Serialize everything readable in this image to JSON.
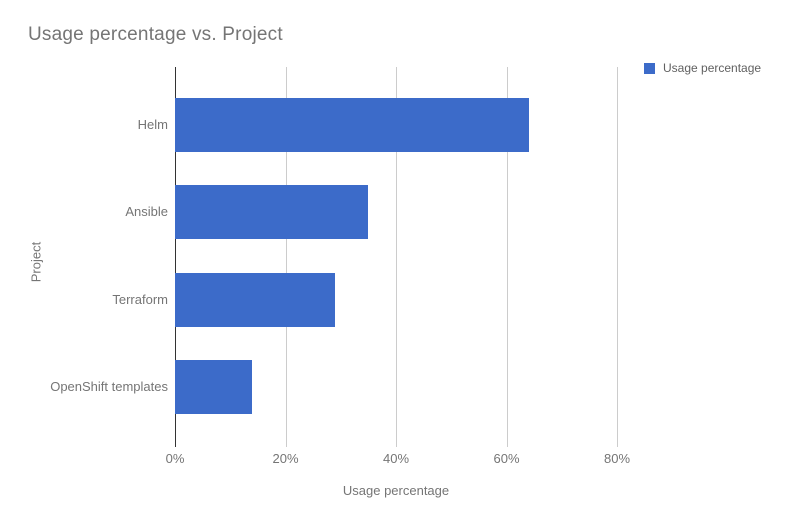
{
  "title": "Usage percentage vs. Project",
  "legend": {
    "label": "Usage percentage"
  },
  "axes": {
    "x_title": "Usage percentage",
    "y_title": "Project"
  },
  "colors": {
    "bar": "#3c6bc9",
    "gridline": "#cccccc",
    "axis_line": "#333333",
    "title_text": "#757575",
    "label_text": "#757575"
  },
  "chart_data": {
    "type": "bar",
    "orientation": "horizontal",
    "title": "Usage percentage vs. Project",
    "xlabel": "Usage percentage",
    "ylabel": "Project",
    "categories": [
      "Helm",
      "Ansible",
      "Terraform",
      "OpenShift templates"
    ],
    "series": [
      {
        "name": "Usage percentage",
        "values": [
          64,
          35,
          29,
          14
        ]
      }
    ],
    "xlim": [
      0,
      80
    ],
    "x_ticks": [
      "0%",
      "20%",
      "40%",
      "60%",
      "80%"
    ],
    "grid": true,
    "legend_position": "top-right",
    "bar_color": "#3c6bc9"
  }
}
